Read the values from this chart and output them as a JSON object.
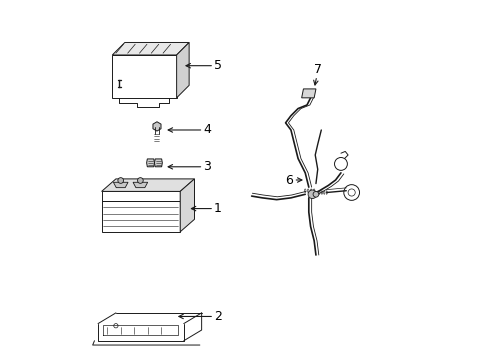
{
  "bg_color": "#ffffff",
  "line_color": "#1a1a1a",
  "label_color": "#000000",
  "fig_width": 4.89,
  "fig_height": 3.6,
  "dpi": 100
}
